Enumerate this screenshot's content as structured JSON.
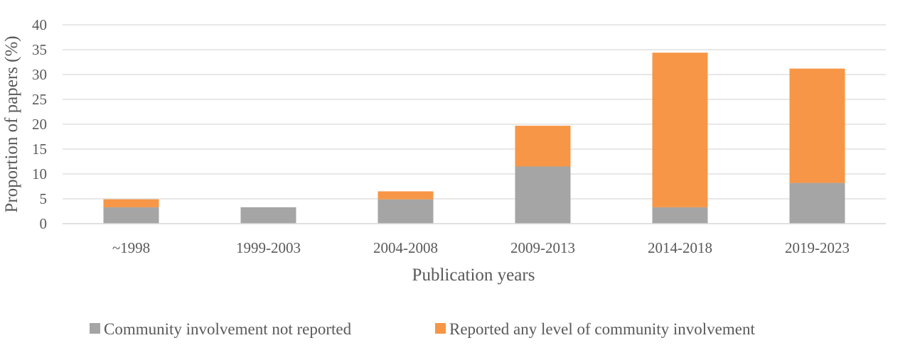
{
  "chart_data": {
    "type": "bar",
    "stacked": true,
    "title": "",
    "xlabel": "Publication years",
    "ylabel": "Proportion of papers (%)",
    "categories": [
      "~1998",
      "1999-2003",
      "2004-2008",
      "2009-2013",
      "2014-2018",
      "2019-2023"
    ],
    "series": [
      {
        "name": "Community involvement not reported",
        "values": [
          3.3,
          3.3,
          4.9,
          11.5,
          3.3,
          8.2
        ],
        "color": "#a5a5a5"
      },
      {
        "name": "Reported any level of community involvement",
        "values": [
          1.6,
          0,
          1.6,
          8.2,
          31.1,
          23.0
        ],
        "color": "#f79646"
      }
    ],
    "ylim": [
      0,
      40
    ],
    "yticks": [
      0,
      5,
      10,
      15,
      20,
      25,
      30,
      35,
      40
    ],
    "grid": true,
    "legend_position": "bottom"
  }
}
